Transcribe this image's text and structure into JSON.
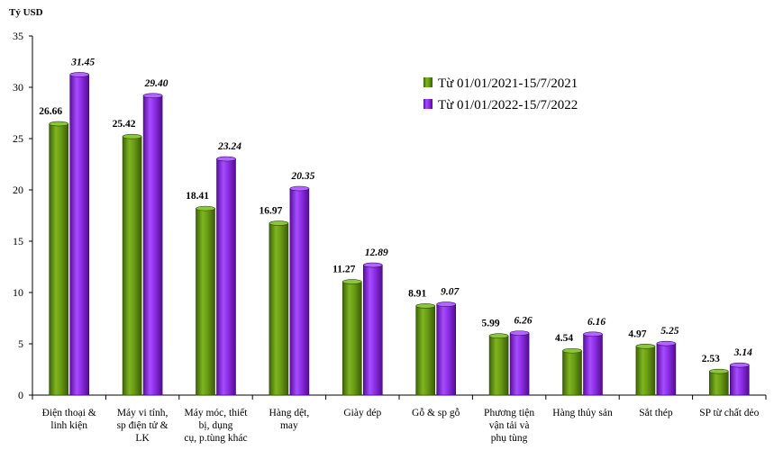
{
  "chart_data": {
    "type": "bar",
    "title": "",
    "ylabel": "Tỷ USD",
    "xlabel": "",
    "ylim": [
      0,
      35
    ],
    "yticks": [
      0,
      5,
      10,
      15,
      20,
      25,
      30,
      35
    ],
    "grid": false,
    "legend_position": "top-right",
    "categories": [
      "Điện thoại & linh kiện",
      "Máy vi tính, sp điện tử & LK",
      "Máy móc, thiết bị, dụng cụ, p.tùng khác",
      "Hàng dệt, may",
      "Giày dép",
      "Gỗ & sp gỗ",
      "Phương tiện vận tải và phụ tùng",
      "Hàng thủy sản",
      "Sắt thép",
      "SP từ chất dẻo"
    ],
    "category_lines": [
      [
        "Điện thoại &",
        "linh kiện"
      ],
      [
        "Máy vi tính,",
        "sp điện tử &",
        "LK"
      ],
      [
        "Máy móc, thiết",
        "bị, dụng",
        "cụ, p.tùng khác"
      ],
      [
        "Hàng dệt,",
        "may"
      ],
      [
        "Giày dép"
      ],
      [
        "Gỗ & sp gỗ"
      ],
      [
        "Phương tiện",
        "vận tải và",
        "phụ tùng"
      ],
      [
        "Hàng thủy sản"
      ],
      [
        "Sắt thép"
      ],
      [
        "SP từ chất dẻo"
      ]
    ],
    "series": [
      {
        "name": "Từ 01/01/2021-15/7/2021",
        "color": "#5e8c14",
        "values": [
          26.66,
          25.42,
          18.41,
          16.97,
          11.27,
          8.91,
          5.99,
          4.54,
          4.97,
          2.53
        ],
        "labels": [
          "26.66",
          "25.42",
          "18.41",
          "16.97",
          "11.27",
          "8.91",
          "5.99",
          "4.54",
          "4.97",
          "2.53"
        ]
      },
      {
        "name": "Từ 01/01/2022-15/7/2022",
        "color": "#8a2be2",
        "values": [
          31.45,
          29.4,
          23.24,
          20.35,
          12.89,
          9.07,
          6.26,
          6.16,
          5.25,
          3.14
        ],
        "labels": [
          "31.45",
          "29.40",
          "23.24",
          "20.35",
          "12.89",
          "9.07",
          "6.26",
          "6.16",
          "5.25",
          "3.14"
        ]
      }
    ]
  }
}
